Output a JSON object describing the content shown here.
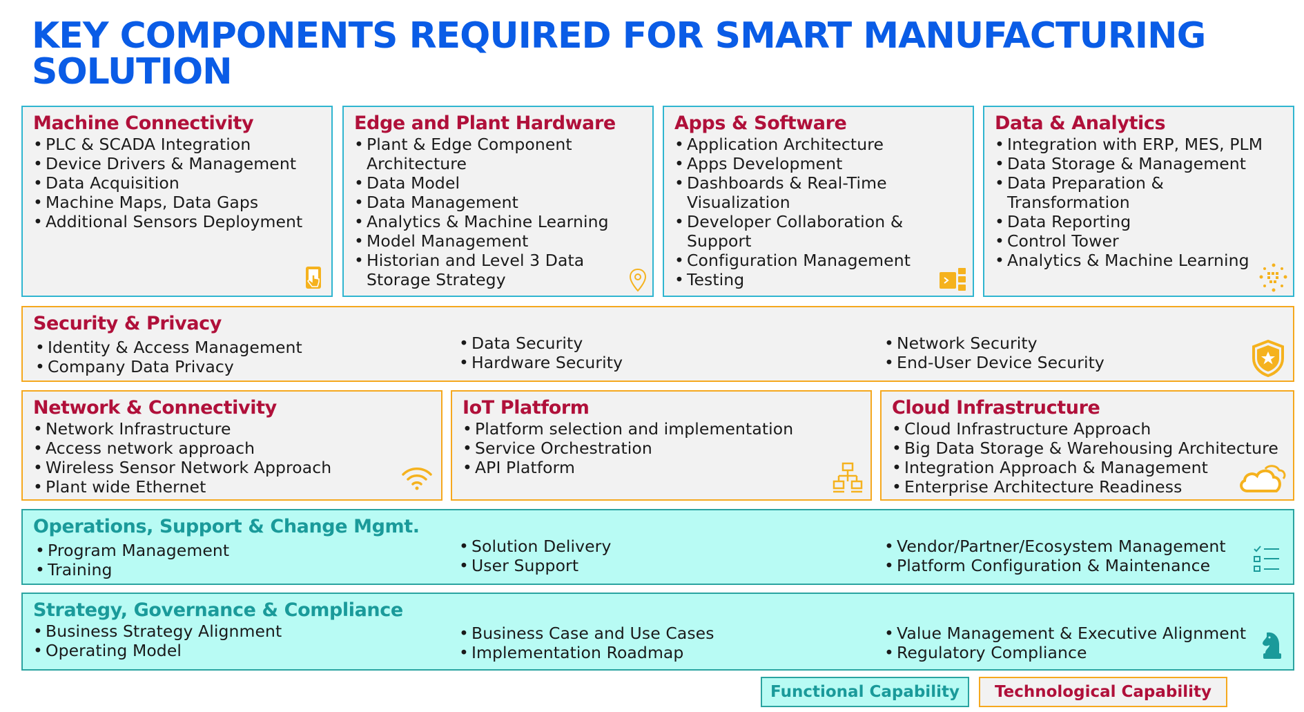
{
  "title": "KEY COMPONENTS REQUIRED FOR SMART MANUFACTURING SOLUTION",
  "colors": {
    "title": "#0a5ce6",
    "heading_tech": "#b0103a",
    "heading_func": "#1a9a9a",
    "border_blue": "#2fb5d0",
    "border_orange": "#f5a81e",
    "border_teal": "#2aa3a0",
    "func_fill": "#b8fbf4",
    "icon": "#f5b21e",
    "icon_teal": "#1a9a9a"
  },
  "machine_connectivity": {
    "heading": "Machine Connectivity",
    "items": [
      "PLC & SCADA Integration",
      "Device Drivers & Management",
      "Data Acquisition",
      "Machine Maps, Data Gaps",
      "Additional Sensors Deployment"
    ],
    "icon": "tablet-touch-icon"
  },
  "edge_plant_hardware": {
    "heading": "Edge and Plant Hardware",
    "items": [
      "Plant & Edge Component Architecture",
      "Data Model",
      "Data Management",
      "Analytics & Machine Learning",
      "Model Management",
      "Historian and Level 3 Data Storage Strategy"
    ],
    "icon": "location-pin-icon"
  },
  "apps_software": {
    "heading": "Apps & Software",
    "items": [
      "Application Architecture",
      "Apps Development",
      "Dashboards & Real-Time Visualization",
      "Developer Collaboration & Support",
      "Configuration Management",
      "Testing"
    ],
    "icon": "code-window-icon"
  },
  "data_analytics": {
    "heading": "Data & Analytics",
    "items": [
      "Integration with ERP, MES, PLM",
      "Data Storage & Management",
      "Data Preparation & Transformation",
      "Data Reporting",
      "Control Tower",
      "Analytics & Machine Learning"
    ],
    "icon": "binary-data-icon"
  },
  "security_privacy": {
    "heading": "Security & Privacy",
    "col1": [
      "Identity & Access Management",
      "Company Data Privacy"
    ],
    "col2": [
      "Data Security",
      "Hardware Security"
    ],
    "col3": [
      "Network Security",
      "End-User Device Security"
    ],
    "icon": "shield-star-icon"
  },
  "network_connectivity": {
    "heading": "Network & Connectivity",
    "items": [
      "Network Infrastructure",
      "Access network approach",
      "Wireless Sensor Network Approach",
      "Plant wide Ethernet"
    ],
    "icon": "wifi-icon"
  },
  "iot_platform": {
    "heading": "IoT Platform",
    "items": [
      "Platform selection and implementation",
      "Service Orchestration",
      "API Platform"
    ],
    "icon": "network-hierarchy-icon"
  },
  "cloud_infrastructure": {
    "heading": "Cloud Infrastructure",
    "items": [
      "Cloud Infrastructure Approach",
      "Big Data Storage & Warehousing Architecture",
      "Integration Approach & Management",
      "Enterprise Architecture Readiness"
    ],
    "icon": "cloud-icon"
  },
  "operations_support": {
    "heading": "Operations, Support & Change Mgmt.",
    "col1": [
      "Program Management",
      "Training"
    ],
    "col2": [
      "Solution Delivery",
      "User Support"
    ],
    "col3": [
      "Vendor/Partner/Ecosystem Management",
      "Platform Configuration & Maintenance"
    ],
    "icon": "checklist-icon"
  },
  "strategy_governance": {
    "heading": "Strategy, Governance & Compliance",
    "col1": [
      "Business Strategy Alignment",
      "Operating Model"
    ],
    "col2": [
      "Business Case and Use Cases",
      "Implementation Roadmap"
    ],
    "col3": [
      "Value Management & Executive Alignment",
      "Regulatory Compliance"
    ],
    "icon": "chess-knight-icon"
  },
  "legend": {
    "functional": "Functional Capability",
    "technological": "Technological Capability"
  }
}
